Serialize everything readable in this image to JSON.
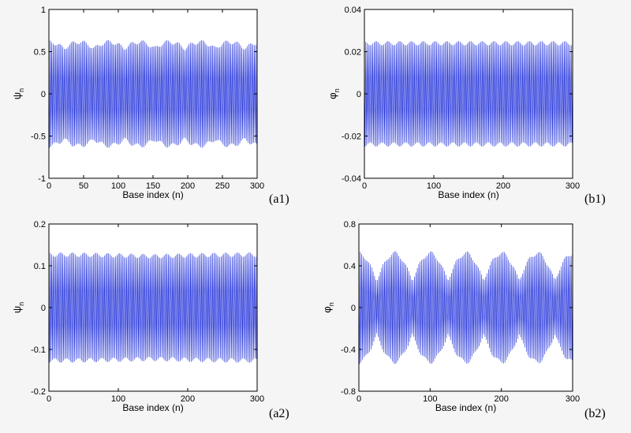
{
  "chart_data": [
    {
      "id": "a1",
      "type": "line",
      "panel_label": "(a1)",
      "xlabel": "Base index (n)",
      "ylabel": "ψ",
      "ylabel_sub": "n",
      "xlim": [
        0,
        300
      ],
      "ylim": [
        -1,
        1
      ],
      "xticks": [
        "0",
        "50",
        "100",
        "150",
        "200",
        "250",
        "300"
      ],
      "yticks": [
        "-1",
        "-0.5",
        "0",
        "0.5",
        "1"
      ],
      "signal": {
        "n_points": 301,
        "carrier_period": 2,
        "envelope": {
          "min": 0.56,
          "max": 0.64,
          "period": 43.5
        }
      }
    },
    {
      "id": "b1",
      "type": "line",
      "panel_label": "(b1)",
      "xlabel": "Base index (n)",
      "ylabel": "φ",
      "ylabel_sub": "n",
      "xlim": [
        0,
        300
      ],
      "ylim": [
        -0.04,
        0.04
      ],
      "xticks": [
        "0",
        "100",
        "200",
        "300"
      ],
      "yticks": [
        "-0.04",
        "-0.02",
        "0",
        "0.02",
        "0.04"
      ],
      "signal": {
        "n_points": 301,
        "carrier_period": 2,
        "envelope": {
          "min": 0.025,
          "max": 0.025,
          "period": 300
        }
      }
    },
    {
      "id": "a2",
      "type": "line",
      "panel_label": "(a2)",
      "xlabel": "Base index (n)",
      "ylabel": "ψ",
      "ylabel_sub": "n",
      "xlim": [
        0,
        300
      ],
      "ylim": [
        -0.2,
        0.2
      ],
      "xticks": [
        "0",
        "100",
        "200",
        "300"
      ],
      "yticks": [
        "-0.2",
        "-0.1",
        "0",
        "0.1",
        "0.2"
      ],
      "signal": {
        "n_points": 301,
        "carrier_period": 2,
        "envelope": {
          "min": 0.128,
          "max": 0.132,
          "period": 300
        }
      }
    },
    {
      "id": "b2",
      "type": "line",
      "panel_label": "(b2)",
      "xlabel": "Base index (n)",
      "ylabel": "φ",
      "ylabel_sub": "n",
      "xlim": [
        0,
        300
      ],
      "ylim": [
        -0.8,
        0.8
      ],
      "xticks": [
        "0",
        "100",
        "200",
        "300"
      ],
      "yticks": [
        "-0.8",
        "-0.4",
        "0",
        "0.4",
        "0.8"
      ],
      "signal": {
        "n_points": 301,
        "carrier_period": 2,
        "envelope": {
          "min": 0.27,
          "max": 0.54,
          "period": 50
        }
      }
    }
  ],
  "colors": {
    "signal": "#1a2ad8",
    "axis": "#000000",
    "background": "#f5f5f5"
  }
}
